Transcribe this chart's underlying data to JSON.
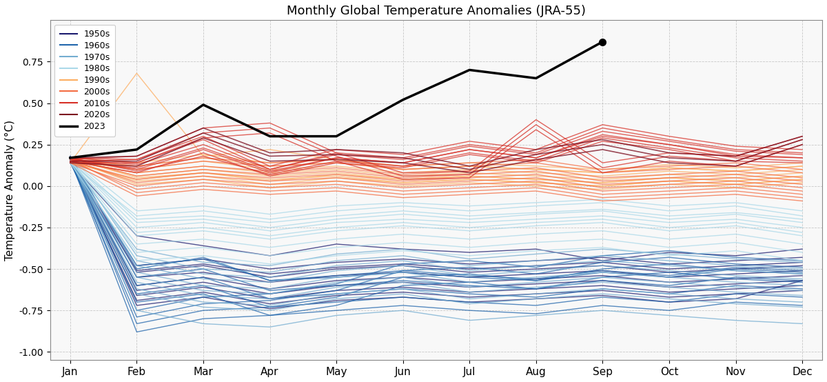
{
  "title": "Monthly Global Temperature Anomalies (JRA-55)",
  "ylabel": "Temperature Anomaly (°C)",
  "months": [
    "Jan",
    "Feb",
    "Mar",
    "Apr",
    "May",
    "Jun",
    "Jul",
    "Aug",
    "Sep",
    "Oct",
    "Nov",
    "Dec"
  ],
  "ylim": [
    -1.05,
    1.0
  ],
  "yticks": [
    -1.0,
    -0.75,
    -0.5,
    -0.25,
    0.0,
    0.25,
    0.5,
    0.75
  ],
  "decade_colors": {
    "1950s": "#1a1a6e",
    "1960s": "#2166ac",
    "1970s": "#74add1",
    "1980s": "#abd9e9",
    "1990s": "#fdae61",
    "2000s": "#f46d43",
    "2010s": "#d73027",
    "2020s": "#7b0d1e",
    "2023": "#000000"
  },
  "decade_linewidths": {
    "1950s": 1.0,
    "1960s": 1.0,
    "1970s": 1.0,
    "1980s": 1.0,
    "1990s": 1.0,
    "2000s": 1.0,
    "2010s": 1.0,
    "2020s": 1.2,
    "2023": 2.5
  },
  "year_data": {
    "1950": [
      0.14,
      -0.3,
      -0.36,
      -0.42,
      -0.35,
      -0.38,
      -0.4,
      -0.38,
      -0.45,
      -0.4,
      -0.42,
      -0.38
    ],
    "1951": [
      0.18,
      -0.52,
      -0.48,
      -0.55,
      -0.5,
      -0.48,
      -0.52,
      -0.5,
      -0.48,
      -0.52,
      -0.5,
      -0.48
    ],
    "1952": [
      0.16,
      -0.55,
      -0.52,
      -0.58,
      -0.54,
      -0.52,
      -0.55,
      -0.53,
      -0.51,
      -0.55,
      -0.53,
      -0.51
    ],
    "1953": [
      0.15,
      -0.6,
      -0.55,
      -0.62,
      -0.57,
      -0.55,
      -0.58,
      -0.56,
      -0.54,
      -0.58,
      -0.56,
      -0.54
    ],
    "1954": [
      0.17,
      -0.63,
      -0.58,
      -0.65,
      -0.6,
      -0.58,
      -0.61,
      -0.59,
      -0.57,
      -0.61,
      -0.59,
      -0.57
    ],
    "1955": [
      0.16,
      -0.66,
      -0.61,
      -0.68,
      -0.63,
      -0.61,
      -0.64,
      -0.62,
      -0.6,
      -0.64,
      -0.62,
      -0.6
    ],
    "1956": [
      0.15,
      -0.69,
      -0.64,
      -0.71,
      -0.66,
      -0.64,
      -0.67,
      -0.65,
      -0.63,
      -0.67,
      -0.65,
      -0.63
    ],
    "1957": [
      0.17,
      -0.72,
      -0.67,
      -0.74,
      -0.69,
      -0.67,
      -0.7,
      -0.68,
      -0.66,
      -0.7,
      -0.68,
      -0.57
    ],
    "1958": [
      0.16,
      -0.48,
      -0.44,
      -0.5,
      -0.46,
      -0.44,
      -0.47,
      -0.45,
      -0.43,
      -0.47,
      -0.45,
      -0.43
    ],
    "1959": [
      0.14,
      -0.51,
      -0.47,
      -0.53,
      -0.49,
      -0.47,
      -0.5,
      -0.48,
      -0.46,
      -0.5,
      -0.48,
      -0.46
    ],
    "1960": [
      0.16,
      -0.88,
      -0.8,
      -0.78,
      -0.72,
      -0.6,
      -0.58,
      -0.62,
      -0.55,
      -0.52,
      -0.56,
      -0.58
    ],
    "1961": [
      0.17,
      -0.83,
      -0.75,
      -0.73,
      -0.67,
      -0.55,
      -0.53,
      -0.57,
      -0.5,
      -0.47,
      -0.51,
      -0.53
    ],
    "1962": [
      0.15,
      -0.79,
      -0.71,
      -0.69,
      -0.63,
      -0.51,
      -0.49,
      -0.53,
      -0.46,
      -0.43,
      -0.47,
      -0.49
    ],
    "1963": [
      0.16,
      -0.75,
      -0.67,
      -0.65,
      -0.59,
      -0.47,
      -0.45,
      -0.49,
      -0.42,
      -0.39,
      -0.43,
      -0.45
    ],
    "1964": [
      0.18,
      -0.5,
      -0.43,
      -0.57,
      -0.55,
      -0.52,
      -0.55,
      -0.57,
      -0.52,
      -0.55,
      -0.5,
      -0.52
    ],
    "1965": [
      0.17,
      -0.55,
      -0.5,
      -0.63,
      -0.6,
      -0.57,
      -0.6,
      -0.62,
      -0.57,
      -0.6,
      -0.55,
      -0.57
    ],
    "1966": [
      0.16,
      -0.6,
      -0.55,
      -0.68,
      -0.65,
      -0.62,
      -0.65,
      -0.67,
      -0.62,
      -0.65,
      -0.6,
      -0.62
    ],
    "1967": [
      0.14,
      -0.65,
      -0.6,
      -0.73,
      -0.7,
      -0.67,
      -0.7,
      -0.72,
      -0.67,
      -0.7,
      -0.65,
      -0.67
    ],
    "1968": [
      0.15,
      -0.7,
      -0.65,
      -0.78,
      -0.75,
      -0.72,
      -0.75,
      -0.77,
      -0.72,
      -0.75,
      -0.7,
      -0.72
    ],
    "1969": [
      0.16,
      -0.48,
      -0.44,
      -0.57,
      -0.54,
      -0.51,
      -0.54,
      -0.56,
      -0.51,
      -0.54,
      -0.49,
      -0.51
    ],
    "1970": [
      0.17,
      -0.42,
      -0.5,
      -0.52,
      -0.45,
      -0.42,
      -0.48,
      -0.45,
      -0.42,
      -0.45,
      -0.48,
      -0.5
    ],
    "1971": [
      0.15,
      -0.52,
      -0.6,
      -0.62,
      -0.55,
      -0.52,
      -0.58,
      -0.55,
      -0.52,
      -0.55,
      -0.58,
      -0.6
    ],
    "1972": [
      0.16,
      -0.62,
      -0.7,
      -0.72,
      -0.65,
      -0.62,
      -0.68,
      -0.65,
      -0.62,
      -0.65,
      -0.68,
      -0.7
    ],
    "1973": [
      0.14,
      -0.45,
      -0.53,
      -0.55,
      -0.48,
      -0.45,
      -0.51,
      -0.48,
      -0.45,
      -0.48,
      -0.51,
      -0.53
    ],
    "1974": [
      0.15,
      -0.55,
      -0.63,
      -0.65,
      -0.58,
      -0.55,
      -0.61,
      -0.58,
      -0.55,
      -0.58,
      -0.61,
      -0.63
    ],
    "1975": [
      0.16,
      -0.65,
      -0.73,
      -0.75,
      -0.68,
      -0.65,
      -0.71,
      -0.68,
      -0.65,
      -0.68,
      -0.71,
      -0.73
    ],
    "1976": [
      0.17,
      -0.75,
      -0.83,
      -0.85,
      -0.78,
      -0.75,
      -0.81,
      -0.78,
      -0.75,
      -0.78,
      -0.81,
      -0.83
    ],
    "1977": [
      0.15,
      -0.58,
      -0.66,
      -0.68,
      -0.61,
      -0.58,
      -0.64,
      -0.61,
      -0.58,
      -0.61,
      -0.64,
      -0.66
    ],
    "1978": [
      0.16,
      -0.48,
      -0.56,
      -0.58,
      -0.51,
      -0.48,
      -0.54,
      -0.51,
      -0.48,
      -0.51,
      -0.54,
      -0.56
    ],
    "1979": [
      0.14,
      -0.38,
      -0.46,
      -0.48,
      -0.41,
      -0.38,
      -0.44,
      -0.41,
      -0.38,
      -0.41,
      -0.44,
      -0.46
    ],
    "1980": [
      0.17,
      -0.2,
      -0.18,
      -0.22,
      -0.18,
      -0.15,
      -0.18,
      -0.16,
      -0.14,
      -0.18,
      -0.16,
      -0.2
    ],
    "1981": [
      0.16,
      -0.25,
      -0.22,
      -0.27,
      -0.22,
      -0.2,
      -0.22,
      -0.2,
      -0.18,
      -0.22,
      -0.2,
      -0.25
    ],
    "1982": [
      0.15,
      -0.3,
      -0.27,
      -0.32,
      -0.27,
      -0.24,
      -0.27,
      -0.24,
      -0.22,
      -0.27,
      -0.24,
      -0.3
    ],
    "1983": [
      0.17,
      -0.15,
      -0.12,
      -0.17,
      -0.12,
      -0.1,
      -0.12,
      -0.1,
      -0.08,
      -0.12,
      -0.1,
      -0.15
    ],
    "1984": [
      0.15,
      -0.35,
      -0.32,
      -0.37,
      -0.32,
      -0.29,
      -0.32,
      -0.29,
      -0.27,
      -0.32,
      -0.29,
      -0.35
    ],
    "1985": [
      0.16,
      -0.4,
      -0.37,
      -0.42,
      -0.37,
      -0.34,
      -0.37,
      -0.34,
      -0.32,
      -0.37,
      -0.34,
      -0.4
    ],
    "1986": [
      0.14,
      -0.45,
      -0.42,
      -0.47,
      -0.42,
      -0.39,
      -0.42,
      -0.39,
      -0.37,
      -0.42,
      -0.39,
      -0.45
    ],
    "1987": [
      0.15,
      -0.28,
      -0.25,
      -0.3,
      -0.25,
      -0.22,
      -0.25,
      -0.22,
      -0.2,
      -0.25,
      -0.22,
      -0.28
    ],
    "1988": [
      0.16,
      -0.22,
      -0.2,
      -0.25,
      -0.2,
      -0.17,
      -0.2,
      -0.17,
      -0.15,
      -0.2,
      -0.17,
      -0.22
    ],
    "1989": [
      0.14,
      -0.18,
      -0.15,
      -0.2,
      -0.15,
      -0.12,
      -0.15,
      -0.12,
      -0.1,
      -0.15,
      -0.12,
      -0.18
    ],
    "1990": [
      0.17,
      0.05,
      0.08,
      0.03,
      0.07,
      0.04,
      0.06,
      0.04,
      0.02,
      0.05,
      0.03,
      0.06
    ],
    "1991": [
      0.15,
      0.03,
      0.06,
      0.01,
      0.05,
      0.02,
      0.04,
      0.02,
      0.0,
      0.03,
      0.01,
      0.04
    ],
    "1992": [
      0.16,
      0.01,
      0.04,
      -0.01,
      0.03,
      0.0,
      0.02,
      0.0,
      -0.02,
      0.01,
      -0.01,
      0.02
    ],
    "1993": [
      0.14,
      0.68,
      0.18,
      0.22,
      0.16,
      0.1,
      0.12,
      0.1,
      0.08,
      0.11,
      0.09,
      0.12
    ],
    "1994": [
      0.15,
      0.1,
      0.15,
      0.1,
      0.12,
      0.08,
      0.1,
      0.08,
      0.06,
      0.09,
      0.07,
      0.1
    ],
    "1995": [
      0.16,
      0.12,
      0.17,
      0.12,
      0.14,
      0.1,
      0.12,
      0.1,
      0.08,
      0.11,
      0.09,
      0.12
    ],
    "1996": [
      0.17,
      0.14,
      0.19,
      0.14,
      0.16,
      0.12,
      0.14,
      0.12,
      0.1,
      0.13,
      0.11,
      0.14
    ],
    "1997": [
      0.15,
      0.08,
      0.12,
      0.08,
      0.1,
      0.06,
      0.08,
      0.06,
      0.04,
      0.07,
      0.05,
      0.08
    ],
    "1998": [
      0.16,
      0.06,
      0.1,
      0.06,
      0.08,
      0.04,
      0.06,
      0.04,
      0.02,
      0.05,
      0.03,
      0.06
    ],
    "1999": [
      0.14,
      0.04,
      0.08,
      0.04,
      0.06,
      0.02,
      0.04,
      0.02,
      0.0,
      0.03,
      0.01,
      0.04
    ],
    "2000": [
      0.17,
      0.1,
      0.15,
      0.12,
      0.14,
      0.1,
      0.12,
      0.14,
      0.08,
      0.1,
      0.12,
      0.08
    ],
    "2001": [
      0.16,
      0.12,
      0.17,
      0.14,
      0.16,
      0.12,
      0.14,
      0.16,
      0.1,
      0.12,
      0.14,
      0.1
    ],
    "2002": [
      0.15,
      0.08,
      0.12,
      0.09,
      0.11,
      0.07,
      0.09,
      0.11,
      0.05,
      0.07,
      0.09,
      0.05
    ],
    "2003": [
      0.17,
      0.06,
      0.1,
      0.07,
      0.09,
      0.05,
      0.07,
      0.09,
      0.03,
      0.05,
      0.07,
      0.03
    ],
    "2004": [
      0.15,
      0.04,
      0.08,
      0.05,
      0.07,
      0.03,
      0.05,
      0.07,
      0.01,
      0.03,
      0.05,
      0.01
    ],
    "2005": [
      0.16,
      0.02,
      0.06,
      0.03,
      0.05,
      0.01,
      0.03,
      0.05,
      -0.01,
      0.01,
      0.03,
      -0.01
    ],
    "2006": [
      0.14,
      0.0,
      0.04,
      0.01,
      0.03,
      -0.01,
      0.01,
      0.03,
      -0.03,
      -0.01,
      0.01,
      -0.03
    ],
    "2007": [
      0.15,
      -0.02,
      0.02,
      -0.01,
      0.01,
      -0.03,
      -0.01,
      0.01,
      -0.05,
      -0.03,
      -0.01,
      -0.05
    ],
    "2008": [
      0.16,
      -0.04,
      0.0,
      -0.03,
      -0.01,
      -0.05,
      -0.03,
      -0.01,
      -0.07,
      -0.05,
      -0.03,
      -0.07
    ],
    "2009": [
      0.14,
      -0.06,
      -0.02,
      -0.05,
      -0.03,
      -0.07,
      -0.05,
      -0.03,
      -0.09,
      -0.07,
      -0.05,
      -0.09
    ],
    "2010": [
      0.17,
      0.14,
      0.28,
      0.1,
      0.2,
      0.17,
      0.25,
      0.2,
      0.35,
      0.28,
      0.22,
      0.2
    ],
    "2011": [
      0.16,
      0.1,
      0.22,
      0.08,
      0.17,
      0.14,
      0.22,
      0.17,
      0.3,
      0.25,
      0.18,
      0.17
    ],
    "2012": [
      0.15,
      0.08,
      0.2,
      0.06,
      0.14,
      0.11,
      0.19,
      0.14,
      0.27,
      0.22,
      0.15,
      0.14
    ],
    "2013": [
      0.17,
      0.16,
      0.3,
      0.12,
      0.22,
      0.19,
      0.27,
      0.22,
      0.37,
      0.3,
      0.24,
      0.22
    ],
    "2014": [
      0.16,
      0.13,
      0.25,
      0.1,
      0.19,
      0.16,
      0.24,
      0.19,
      0.33,
      0.27,
      0.21,
      0.19
    ],
    "2015": [
      0.15,
      0.11,
      0.23,
      0.09,
      0.17,
      0.14,
      0.22,
      0.17,
      0.31,
      0.25,
      0.19,
      0.17
    ],
    "2016": [
      0.17,
      0.09,
      0.18,
      0.07,
      0.15,
      0.12,
      0.2,
      0.15,
      0.29,
      0.23,
      0.17,
      0.15
    ],
    "2017": [
      0.16,
      0.18,
      0.35,
      0.38,
      0.2,
      0.08,
      0.09,
      0.4,
      0.14,
      0.2,
      0.18,
      0.3
    ],
    "2018": [
      0.15,
      0.16,
      0.32,
      0.35,
      0.18,
      0.06,
      0.07,
      0.37,
      0.11,
      0.18,
      0.15,
      0.28
    ],
    "2019": [
      0.14,
      0.14,
      0.29,
      0.32,
      0.15,
      0.04,
      0.05,
      0.34,
      0.08,
      0.15,
      0.12,
      0.25
    ],
    "2020": [
      0.17,
      0.18,
      0.35,
      0.2,
      0.22,
      0.2,
      0.12,
      0.22,
      0.28,
      0.2,
      0.18,
      0.3
    ],
    "2021": [
      0.15,
      0.15,
      0.32,
      0.18,
      0.19,
      0.17,
      0.1,
      0.19,
      0.25,
      0.17,
      0.15,
      0.28
    ],
    "2022": [
      0.14,
      0.12,
      0.29,
      0.15,
      0.16,
      0.14,
      0.08,
      0.16,
      0.22,
      0.14,
      0.12,
      0.25
    ],
    "2023": [
      0.17,
      0.22,
      0.49,
      0.3,
      0.3,
      0.52,
      0.7,
      0.65,
      0.87,
      null,
      null,
      null
    ]
  },
  "decade_map": {
    "1950": "1950s",
    "1951": "1950s",
    "1952": "1950s",
    "1953": "1950s",
    "1954": "1950s",
    "1955": "1950s",
    "1956": "1950s",
    "1957": "1950s",
    "1958": "1950s",
    "1959": "1950s",
    "1960": "1960s",
    "1961": "1960s",
    "1962": "1960s",
    "1963": "1960s",
    "1964": "1960s",
    "1965": "1960s",
    "1966": "1960s",
    "1967": "1960s",
    "1968": "1960s",
    "1969": "1960s",
    "1970": "1970s",
    "1971": "1970s",
    "1972": "1970s",
    "1973": "1970s",
    "1974": "1970s",
    "1975": "1970s",
    "1976": "1970s",
    "1977": "1970s",
    "1978": "1970s",
    "1979": "1970s",
    "1980": "1980s",
    "1981": "1980s",
    "1982": "1980s",
    "1983": "1980s",
    "1984": "1980s",
    "1985": "1980s",
    "1986": "1980s",
    "1987": "1980s",
    "1988": "1980s",
    "1989": "1980s",
    "1990": "1990s",
    "1991": "1990s",
    "1992": "1990s",
    "1993": "1990s",
    "1994": "1990s",
    "1995": "1990s",
    "1996": "1990s",
    "1997": "1990s",
    "1998": "1990s",
    "1999": "1990s",
    "2000": "2000s",
    "2001": "2000s",
    "2002": "2000s",
    "2003": "2000s",
    "2004": "2000s",
    "2005": "2000s",
    "2006": "2000s",
    "2007": "2000s",
    "2008": "2000s",
    "2009": "2000s",
    "2010": "2010s",
    "2011": "2010s",
    "2012": "2010s",
    "2013": "2010s",
    "2014": "2010s",
    "2015": "2010s",
    "2016": "2010s",
    "2017": "2010s",
    "2018": "2010s",
    "2019": "2010s",
    "2020": "2020s",
    "2021": "2020s",
    "2022": "2020s",
    "2023": "2023"
  },
  "background_color": "#f8f8f8"
}
